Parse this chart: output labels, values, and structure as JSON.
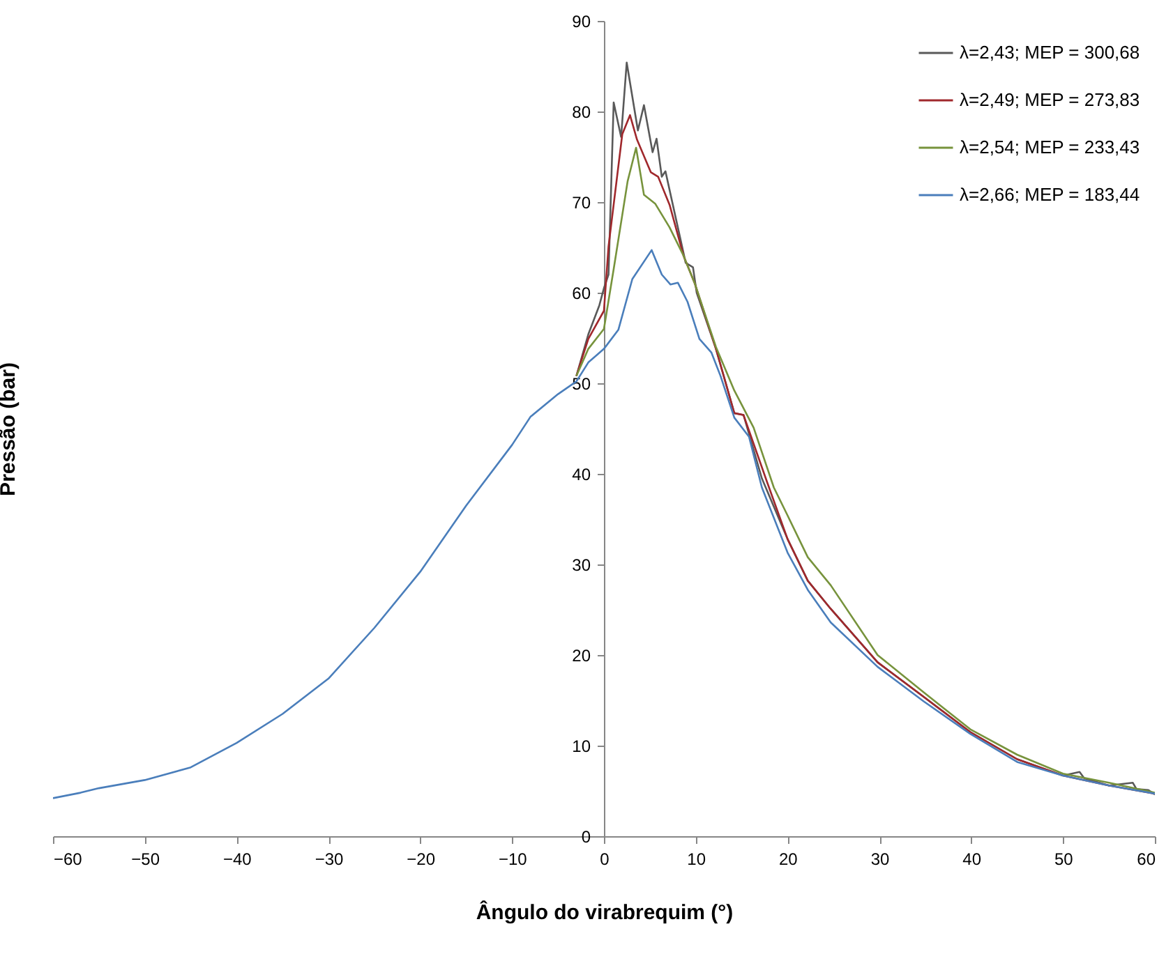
{
  "chart_data": {
    "type": "line",
    "xlabel": "Ângulo do virabrequim (°)",
    "ylabel": "Pressão (bar)",
    "xlim": [
      -60,
      60
    ],
    "xticks": [
      -60,
      -50,
      -40,
      -30,
      -20,
      -10,
      0,
      10,
      20,
      30,
      40,
      50,
      60
    ],
    "ylim": [
      0,
      90
    ],
    "yticks": [
      0,
      10,
      20,
      30,
      40,
      50,
      60,
      70,
      80,
      90
    ],
    "grid": false,
    "legend": "top right",
    "marker": "none",
    "line_style": "solid",
    "series": [
      {
        "name": "λ=2,43; MEP = 300,68",
        "color": "#595959",
        "x": [
          -3,
          -1.7,
          -0.5,
          0,
          0.5,
          1.06,
          1.87,
          2.48,
          3.7,
          4.36,
          5.3,
          5.73,
          6.3,
          6.7,
          8.05,
          8.9,
          9.7,
          10.1,
          12.2,
          14.2,
          15.2,
          17.2,
          20,
          22.2,
          24.7,
          29.8,
          34.8,
          39.9,
          45,
          50,
          51.8,
          52.3,
          55,
          57.6,
          58,
          59.3,
          60
        ],
        "values": [
          50.8,
          55.4,
          58.6,
          60.5,
          62,
          81.0,
          77.2,
          85.4,
          77.9,
          80.7,
          75.5,
          77.0,
          72.8,
          73.4,
          67.2,
          63.3,
          62.8,
          60,
          53.8,
          46.7,
          46.5,
          39.5,
          32.8,
          28.2,
          25.1,
          19.2,
          15.4,
          11.5,
          8.5,
          6.7,
          7.1,
          6.4,
          5.6,
          5.9,
          5.2,
          5.1,
          4.6
        ]
      },
      {
        "name": "λ=2,49; MEP = 273,83",
        "color": "#a0282c",
        "x": [
          -3,
          -1.7,
          0,
          0.5,
          2.0,
          2.84,
          3.6,
          5.1,
          5.9,
          7.15,
          8.66,
          9.9,
          12.2,
          14.2,
          15.2,
          17.8,
          20,
          22.2,
          24.7,
          29.8,
          34.8,
          39.9,
          45,
          50,
          55,
          60
        ],
        "values": [
          50.8,
          54.9,
          58,
          65.1,
          77.5,
          79.6,
          76.9,
          73.3,
          72.8,
          69.7,
          64.1,
          61,
          53.8,
          46.7,
          46.5,
          39,
          32.8,
          28.2,
          25.1,
          19.2,
          15.4,
          11.5,
          8.5,
          6.7,
          5.6,
          4.7
        ]
      },
      {
        "name": "λ=2,54; MEP = 233,43",
        "color": "#77933c",
        "x": [
          -3,
          -1.7,
          0,
          1.06,
          2.58,
          3.5,
          4.36,
          5.6,
          7.15,
          8.66,
          9.9,
          12.2,
          14.2,
          16.3,
          18.5,
          20,
          22.2,
          24.7,
          29.8,
          34.8,
          39.9,
          45,
          50,
          55,
          60
        ],
        "values": [
          50.8,
          53.8,
          56,
          62.6,
          72.3,
          76.0,
          70.8,
          69.8,
          67.2,
          64.1,
          61,
          54,
          49.2,
          45.1,
          38.5,
          35.4,
          30.8,
          27.7,
          20,
          15.9,
          11.8,
          9.0,
          6.9,
          5.9,
          4.8
        ]
      },
      {
        "name": "λ=2,66; MEP = 183,44",
        "color": "#4a7ebb",
        "x": [
          -60,
          -57,
          -55,
          -50,
          -45,
          -40,
          -35,
          -30,
          -25,
          -20,
          -15,
          -10,
          -8,
          -5,
          -3,
          -1.7,
          0,
          1.57,
          3.09,
          5.2,
          6.3,
          7.25,
          8.05,
          9.1,
          10.4,
          11.7,
          12.7,
          14.2,
          15.8,
          17.2,
          20,
          22.2,
          24.7,
          29.8,
          34.8,
          39.9,
          45,
          50,
          55,
          60
        ],
        "values": [
          4.2,
          4.8,
          5.3,
          6.2,
          7.6,
          10.3,
          13.5,
          17.4,
          23,
          29.2,
          36.5,
          43.2,
          46.3,
          48.8,
          50.2,
          52.3,
          53.8,
          55.9,
          61.5,
          64.7,
          62.0,
          60.9,
          61.1,
          59.0,
          54.9,
          53.4,
          50.8,
          46.2,
          44.1,
          38.5,
          31.3,
          27.2,
          23.6,
          18.7,
          14.9,
          11.3,
          8.2,
          6.7,
          5.6,
          4.7
        ]
      }
    ]
  }
}
